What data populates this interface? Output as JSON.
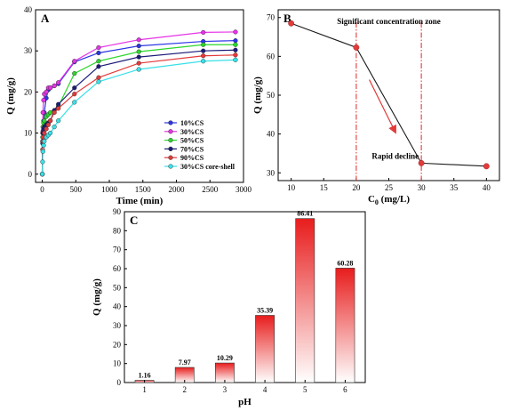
{
  "chart_data": [
    {
      "type": "line",
      "panel_label": "A",
      "xlabel": "Time (min)",
      "ylabel": "Q (mg/g)",
      "xlim": [
        -100,
        3000
      ],
      "ylim": [
        -2,
        40
      ],
      "xticks": [
        0,
        500,
        1000,
        1500,
        2000,
        2500,
        3000
      ],
      "yticks": [
        0,
        10,
        20,
        30,
        40
      ],
      "legend_position": "center-right",
      "x": [
        0,
        5,
        10,
        20,
        30,
        60,
        90,
        120,
        180,
        240,
        480,
        840,
        1440,
        2400,
        2880
      ],
      "series": [
        {
          "name": "10%CS",
          "color": "#2b35e6",
          "values": [
            0,
            7.5,
            10.5,
            13,
            15,
            18.5,
            20.5,
            21,
            21.5,
            22,
            27.3,
            29.5,
            31.2,
            32.3,
            32.5
          ]
        },
        {
          "name": "30%CS",
          "color": "#e633e6",
          "values": [
            0,
            10,
            15,
            18,
            19.5,
            20,
            21,
            21,
            21.5,
            22.3,
            27.5,
            30.8,
            32.7,
            34.5,
            34.6
          ]
        },
        {
          "name": "50%CS",
          "color": "#2bd62b",
          "values": [
            0,
            9,
            11.5,
            12.5,
            13,
            14,
            14.5,
            15,
            15.5,
            16.5,
            24.5,
            27.5,
            29.8,
            31.5,
            31.5
          ]
        },
        {
          "name": "70%CS",
          "color": "#1c1c7a",
          "values": [
            0,
            8,
            10,
            11,
            11.5,
            12,
            12.5,
            13,
            15.5,
            17,
            21,
            26.2,
            28.5,
            30,
            30.2
          ]
        },
        {
          "name": "90%CS",
          "color": "#e33a3a",
          "values": [
            0,
            6,
            8,
            9,
            10,
            11,
            12,
            13,
            15,
            16,
            19.5,
            23.5,
            27,
            28.8,
            29
          ]
        },
        {
          "name": "30%CS core-shell",
          "color": "#38e0e8",
          "values": [
            0,
            3,
            5.5,
            7,
            8,
            9,
            9.5,
            10,
            11.5,
            13,
            17.5,
            22.5,
            25.5,
            27.5,
            27.8
          ]
        }
      ]
    },
    {
      "type": "line",
      "panel_label": "B",
      "xlabel_main": "C",
      "xlabel_sub": "0",
      "xlabel_rest": " (mg/L)",
      "ylabel": "Q (mg/g)",
      "xlim": [
        8,
        42
      ],
      "ylim": [
        28,
        72
      ],
      "xticks": [
        10,
        15,
        20,
        25,
        30,
        35,
        40
      ],
      "yticks": [
        30,
        40,
        50,
        60,
        70
      ],
      "x": [
        10,
        20,
        30,
        40
      ],
      "values": [
        68.5,
        62.3,
        32.5,
        31.7
      ],
      "vlines": [
        20,
        30
      ],
      "annotations": {
        "zone": "Significant concentration zone",
        "decline": "Rapid decline"
      },
      "colors": {
        "line": "#1a1a1a",
        "marker": "#e33a3a",
        "vline": "#e33a3a",
        "arrow": "#e33a3a"
      }
    },
    {
      "type": "bar",
      "panel_label": "C",
      "xlabel": "pH",
      "ylabel": "Q (mg/g)",
      "ylim": [
        0,
        90
      ],
      "yticks": [
        0,
        10,
        20,
        30,
        40,
        50,
        60,
        70,
        80,
        90
      ],
      "categories": [
        "1",
        "2",
        "3",
        "4",
        "5",
        "6"
      ],
      "values": [
        1.16,
        7.97,
        10.29,
        35.39,
        86.41,
        60.28
      ],
      "labels": [
        "1.16",
        "7.97",
        "10.29",
        "35.39",
        "86.41",
        "60.28"
      ],
      "colors": {
        "bar_top": "#e81c1c",
        "bar_bottom": "#ffffff"
      }
    }
  ]
}
